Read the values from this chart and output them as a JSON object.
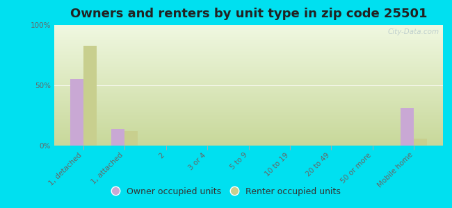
{
  "title": "Owners and renters by unit type in zip code 25501",
  "categories": [
    "1, detached",
    "1, attached",
    "2",
    "3 or 4",
    "5 to 9",
    "10 to 19",
    "20 to 49",
    "50 or more",
    "Mobile home"
  ],
  "owner_values": [
    55,
    14,
    0,
    0,
    0,
    0,
    0,
    0,
    31
  ],
  "renter_values": [
    83,
    12,
    0,
    0,
    0,
    0,
    0,
    0,
    6
  ],
  "owner_color": "#c9a8d4",
  "renter_color": "#c8cf8e",
  "background_outer": "#00e0f0",
  "background_plot_bottom": "#c8d89a",
  "background_plot_top": "#f0f5e0",
  "ylim": [
    0,
    100
  ],
  "yticks": [
    0,
    50,
    100
  ],
  "ytick_labels": [
    "0%",
    "50%",
    "100%"
  ],
  "watermark": "City-Data.com",
  "legend_owner": "Owner occupied units",
  "legend_renter": "Renter occupied units",
  "title_fontsize": 13,
  "tick_fontsize": 7.5,
  "legend_fontsize": 9
}
